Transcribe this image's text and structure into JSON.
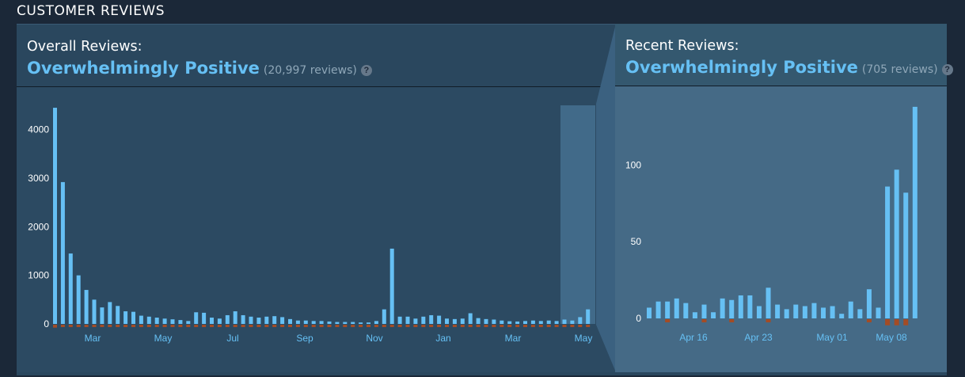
{
  "section": {
    "title": "CUSTOMER REVIEWS"
  },
  "overall": {
    "label": "Overall Reviews:",
    "summary": "Overwhelmingly Positive",
    "count": "(20,997 reviews)",
    "help": "?"
  },
  "recent": {
    "label": "Recent Reviews:",
    "summary": "Overwhelmingly Positive",
    "count": "(705 reviews)",
    "help": "?"
  },
  "colors": {
    "positive": "#66c0f4",
    "negative": "#a34c25",
    "selection": "#416a89"
  },
  "chart_data": [
    {
      "type": "bar",
      "ylim": [
        0,
        4500
      ],
      "y_ticks": [
        0,
        1000,
        2000,
        3000,
        4000
      ],
      "x_ticks": [
        "Mar",
        "May",
        "Jul",
        "Sep",
        "Nov",
        "Jan",
        "Mar",
        "May"
      ],
      "positive": [
        4450,
        2920,
        1450,
        1000,
        700,
        500,
        340,
        450,
        370,
        260,
        250,
        170,
        150,
        130,
        110,
        95,
        80,
        60,
        240,
        230,
        130,
        110,
        180,
        260,
        180,
        150,
        130,
        150,
        160,
        140,
        100,
        70,
        70,
        60,
        60,
        50,
        40,
        40,
        40,
        30,
        30,
        60,
        300,
        1550,
        150,
        150,
        110,
        150,
        180,
        170,
        110,
        100,
        110,
        220,
        120,
        100,
        90,
        70,
        55,
        50,
        60,
        70,
        60,
        70,
        60,
        90,
        70,
        140,
        300
      ],
      "negative": [
        60,
        40,
        30,
        20,
        15,
        10,
        8,
        8,
        7,
        6,
        6,
        5,
        5,
        4,
        4,
        3,
        3,
        3,
        6,
        6,
        4,
        4,
        5,
        6,
        5,
        4,
        4,
        4,
        4,
        4,
        3,
        2,
        2,
        2,
        2,
        2,
        2,
        2,
        2,
        1,
        1,
        2,
        8,
        30,
        5,
        5,
        4,
        5,
        5,
        5,
        4,
        3,
        4,
        6,
        4,
        3,
        3,
        2,
        2,
        2,
        2,
        2,
        2,
        2,
        2,
        3,
        2,
        4,
        8
      ]
    },
    {
      "type": "bar",
      "ylim": [
        0,
        140
      ],
      "y_ticks": [
        0,
        50,
        100
      ],
      "x_ticks": [
        "Apr 16",
        "Apr 23",
        "May 01",
        "May 08"
      ],
      "positive": [
        7,
        11,
        11,
        13,
        10,
        4,
        9,
        4,
        13,
        12,
        15,
        15,
        8,
        20,
        9,
        6,
        9,
        8,
        10,
        7,
        8,
        3,
        11,
        6,
        19,
        7,
        86,
        97,
        82,
        138
      ],
      "negative": [
        0,
        0,
        1,
        0,
        0,
        0,
        1,
        0,
        0,
        1,
        0,
        0,
        0,
        1,
        0,
        0,
        0,
        0,
        0,
        0,
        0,
        0,
        0,
        0,
        1,
        0,
        4,
        4,
        4,
        0
      ]
    }
  ]
}
